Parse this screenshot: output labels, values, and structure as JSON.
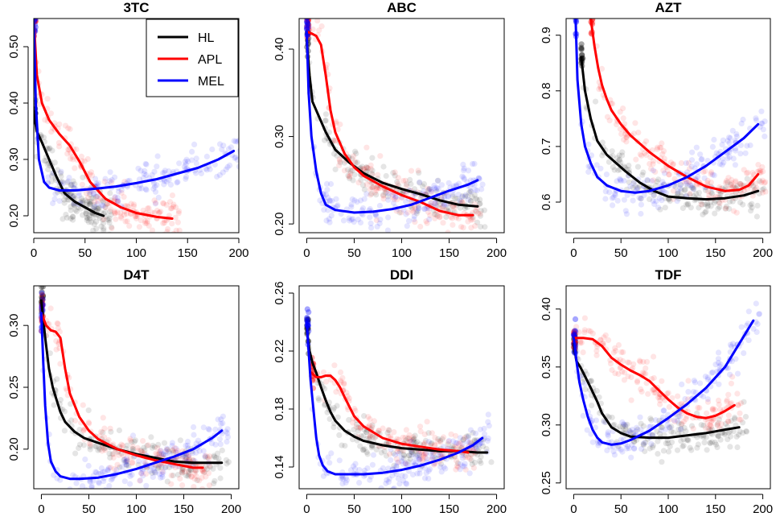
{
  "legend": {
    "placement": "top-right of first panel",
    "entries": [
      {
        "label": "HL",
        "color": "#000000"
      },
      {
        "label": "APL",
        "color": "#ff0000"
      },
      {
        "label": "MEL",
        "color": "#0000ff"
      }
    ]
  },
  "chart_data": [
    {
      "type": "line",
      "title": "3TC",
      "xlabel": "",
      "ylabel": "",
      "xlim": [
        0,
        200
      ],
      "ylim": [
        0.17,
        0.55
      ],
      "xticks": [
        0,
        50,
        100,
        150,
        200
      ],
      "yticks": [
        0.2,
        0.3,
        0.4,
        0.5
      ],
      "ytick_labels": [
        "0.20",
        "0.30",
        "0.40",
        "0.50"
      ],
      "grid": false,
      "series": [
        {
          "name": "HL",
          "color": "#000000",
          "x": [
            0,
            3,
            8,
            15,
            22,
            30,
            40,
            50,
            60,
            68
          ],
          "y": [
            0.38,
            0.35,
            0.33,
            0.3,
            0.27,
            0.24,
            0.225,
            0.215,
            0.205,
            0.2
          ]
        },
        {
          "name": "APL",
          "color": "#ff0000",
          "x": [
            0,
            3,
            8,
            15,
            25,
            35,
            45,
            55,
            70,
            85,
            100,
            120,
            135
          ],
          "y": [
            0.55,
            0.45,
            0.4,
            0.37,
            0.345,
            0.325,
            0.295,
            0.26,
            0.23,
            0.215,
            0.205,
            0.198,
            0.195
          ]
        },
        {
          "name": "MEL",
          "color": "#0000ff",
          "x": [
            0,
            2,
            5,
            10,
            15,
            25,
            40,
            60,
            80,
            100,
            120,
            140,
            160,
            180,
            195
          ],
          "y": [
            0.55,
            0.4,
            0.3,
            0.26,
            0.25,
            0.245,
            0.245,
            0.248,
            0.252,
            0.258,
            0.265,
            0.275,
            0.285,
            0.3,
            0.315
          ]
        }
      ]
    },
    {
      "type": "line",
      "title": "ABC",
      "xlabel": "",
      "ylabel": "",
      "xlim": [
        -8,
        208
      ],
      "ylim": [
        0.19,
        0.435
      ],
      "xticks": [
        0,
        50,
        100,
        150,
        200
      ],
      "yticks": [
        0.2,
        0.3,
        0.4
      ],
      "ytick_labels": [
        "0.20",
        "0.30",
        "0.40"
      ],
      "grid": false,
      "series": [
        {
          "name": "HL",
          "color": "#000000",
          "x": [
            0,
            3,
            6,
            12,
            20,
            30,
            45,
            60,
            80,
            100,
            120,
            140,
            160,
            180
          ],
          "y": [
            0.41,
            0.37,
            0.34,
            0.325,
            0.305,
            0.285,
            0.27,
            0.258,
            0.247,
            0.24,
            0.234,
            0.227,
            0.222,
            0.22
          ]
        },
        {
          "name": "APL",
          "color": "#ff0000",
          "x": [
            0,
            5,
            10,
            15,
            20,
            25,
            30,
            40,
            50,
            60,
            80,
            100,
            120,
            140,
            160,
            175
          ],
          "y": [
            0.42,
            0.418,
            0.415,
            0.405,
            0.37,
            0.33,
            0.305,
            0.28,
            0.265,
            0.255,
            0.243,
            0.233,
            0.225,
            0.215,
            0.21,
            0.21
          ]
        },
        {
          "name": "MEL",
          "color": "#0000ff",
          "x": [
            0,
            2,
            5,
            10,
            15,
            20,
            30,
            50,
            70,
            90,
            110,
            130,
            150,
            170,
            180
          ],
          "y": [
            0.42,
            0.35,
            0.3,
            0.26,
            0.235,
            0.222,
            0.216,
            0.213,
            0.214,
            0.217,
            0.222,
            0.23,
            0.238,
            0.245,
            0.25
          ]
        }
      ]
    },
    {
      "type": "line",
      "title": "AZT",
      "xlabel": "",
      "ylabel": "",
      "xlim": [
        -8,
        208
      ],
      "ylim": [
        0.545,
        0.93
      ],
      "xticks": [
        0,
        50,
        100,
        150,
        200
      ],
      "yticks": [
        0.6,
        0.7,
        0.8,
        0.9
      ],
      "ytick_labels": [
        "0.6",
        "0.7",
        "0.8",
        "0.9"
      ],
      "grid": false,
      "series": [
        {
          "name": "HL",
          "color": "#000000",
          "x": [
            8,
            12,
            18,
            25,
            35,
            45,
            55,
            70,
            85,
            100,
            120,
            140,
            160,
            180,
            195
          ],
          "y": [
            0.86,
            0.8,
            0.75,
            0.71,
            0.685,
            0.67,
            0.655,
            0.635,
            0.62,
            0.61,
            0.607,
            0.605,
            0.607,
            0.612,
            0.62
          ]
        },
        {
          "name": "APL",
          "color": "#ff0000",
          "x": [
            18,
            22,
            26,
            30,
            35,
            40,
            50,
            60,
            80,
            100,
            120,
            140,
            160,
            175,
            185,
            195
          ],
          "y": [
            0.93,
            0.88,
            0.84,
            0.81,
            0.785,
            0.765,
            0.74,
            0.72,
            0.69,
            0.665,
            0.645,
            0.628,
            0.62,
            0.622,
            0.63,
            0.65
          ]
        },
        {
          "name": "MEL",
          "color": "#0000ff",
          "x": [
            2,
            4,
            8,
            12,
            18,
            25,
            35,
            50,
            65,
            80,
            100,
            120,
            140,
            160,
            180,
            195
          ],
          "y": [
            0.93,
            0.82,
            0.74,
            0.7,
            0.67,
            0.645,
            0.63,
            0.62,
            0.617,
            0.62,
            0.63,
            0.645,
            0.665,
            0.69,
            0.715,
            0.74
          ]
        }
      ]
    },
    {
      "type": "line",
      "title": "D4T",
      "xlabel": "",
      "ylabel": "",
      "xlim": [
        -8,
        208
      ],
      "ylim": [
        0.168,
        0.332
      ],
      "xticks": [
        0,
        50,
        100,
        150,
        200
      ],
      "yticks": [
        0.2,
        0.25,
        0.3
      ],
      "ytick_labels": [
        "0.20",
        "0.25",
        "0.30"
      ],
      "grid": false,
      "series": [
        {
          "name": "HL",
          "color": "#000000",
          "x": [
            0,
            4,
            8,
            12,
            16,
            20,
            25,
            35,
            45,
            60,
            80,
            100,
            120,
            140,
            160,
            180,
            190
          ],
          "y": [
            0.32,
            0.29,
            0.265,
            0.25,
            0.24,
            0.23,
            0.222,
            0.214,
            0.209,
            0.205,
            0.2,
            0.196,
            0.193,
            0.19,
            0.189,
            0.189,
            0.189
          ]
        },
        {
          "name": "APL",
          "color": "#ff0000",
          "x": [
            0,
            5,
            10,
            15,
            20,
            25,
            30,
            40,
            50,
            60,
            80,
            100,
            120,
            140,
            160,
            170
          ],
          "y": [
            0.31,
            0.3,
            0.296,
            0.295,
            0.29,
            0.265,
            0.245,
            0.226,
            0.215,
            0.208,
            0.2,
            0.195,
            0.191,
            0.188,
            0.185,
            0.185
          ]
        },
        {
          "name": "MEL",
          "color": "#0000ff",
          "x": [
            0,
            2,
            4,
            7,
            10,
            15,
            20,
            30,
            40,
            60,
            80,
            100,
            120,
            140,
            160,
            180,
            190
          ],
          "y": [
            0.31,
            0.27,
            0.235,
            0.205,
            0.19,
            0.182,
            0.178,
            0.176,
            0.176,
            0.177,
            0.18,
            0.184,
            0.189,
            0.194,
            0.2,
            0.209,
            0.215
          ]
        }
      ]
    },
    {
      "type": "line",
      "title": "DDI",
      "xlabel": "",
      "ylabel": "",
      "xlim": [
        -8,
        208
      ],
      "ylim": [
        0.125,
        0.265
      ],
      "xticks": [
        0,
        50,
        100,
        150,
        200
      ],
      "yticks": [
        0.14,
        0.18,
        0.22,
        0.26
      ],
      "ytick_labels": [
        "0.14",
        "0.18",
        "0.22",
        "0.26"
      ],
      "grid": false,
      "series": [
        {
          "name": "HL",
          "color": "#000000",
          "x": [
            0,
            3,
            6,
            10,
            15,
            20,
            25,
            30,
            40,
            50,
            60,
            80,
            100,
            120,
            140,
            160,
            180,
            190
          ],
          "y": [
            0.235,
            0.22,
            0.212,
            0.205,
            0.195,
            0.186,
            0.178,
            0.172,
            0.165,
            0.161,
            0.158,
            0.155,
            0.153,
            0.152,
            0.151,
            0.151,
            0.15,
            0.15
          ]
        },
        {
          "name": "APL",
          "color": "#ff0000",
          "x": [
            5,
            10,
            15,
            20,
            25,
            30,
            35,
            40,
            50,
            60,
            80,
            100,
            120,
            140,
            160,
            170
          ],
          "y": [
            0.205,
            0.202,
            0.202,
            0.203,
            0.203,
            0.2,
            0.195,
            0.188,
            0.175,
            0.168,
            0.16,
            0.156,
            0.154,
            0.152,
            0.151,
            0.15
          ]
        },
        {
          "name": "MEL",
          "color": "#0000ff",
          "x": [
            0,
            2,
            4,
            7,
            10,
            13,
            17,
            22,
            30,
            45,
            60,
            80,
            100,
            120,
            140,
            160,
            175,
            185
          ],
          "y": [
            0.24,
            0.22,
            0.2,
            0.18,
            0.16,
            0.148,
            0.141,
            0.137,
            0.135,
            0.135,
            0.135,
            0.136,
            0.138,
            0.141,
            0.145,
            0.15,
            0.155,
            0.16
          ]
        }
      ]
    },
    {
      "type": "line",
      "title": "TDF",
      "xlabel": "",
      "ylabel": "",
      "xlim": [
        -8,
        208
      ],
      "ylim": [
        0.245,
        0.42
      ],
      "xticks": [
        0,
        50,
        100,
        150,
        200
      ],
      "yticks": [
        0.25,
        0.3,
        0.35,
        0.4
      ],
      "ytick_labels": [
        "0.25",
        "0.30",
        "0.35",
        "0.40"
      ],
      "grid": false,
      "series": [
        {
          "name": "HL",
          "color": "#000000",
          "x": [
            0,
            3,
            7,
            12,
            18,
            25,
            30,
            35,
            40,
            50,
            60,
            80,
            100,
            120,
            140,
            160,
            175
          ],
          "y": [
            0.37,
            0.355,
            0.35,
            0.342,
            0.332,
            0.32,
            0.31,
            0.304,
            0.298,
            0.293,
            0.29,
            0.289,
            0.289,
            0.291,
            0.293,
            0.296,
            0.298
          ]
        },
        {
          "name": "APL",
          "color": "#ff0000",
          "x": [
            0,
            10,
            20,
            30,
            40,
            50,
            60,
            70,
            80,
            90,
            100,
            110,
            120,
            130,
            140,
            150,
            160,
            170
          ],
          "y": [
            0.375,
            0.375,
            0.374,
            0.368,
            0.358,
            0.352,
            0.347,
            0.343,
            0.338,
            0.33,
            0.322,
            0.315,
            0.31,
            0.307,
            0.306,
            0.308,
            0.312,
            0.317
          ]
        },
        {
          "name": "MEL",
          "color": "#0000ff",
          "x": [
            0,
            3,
            6,
            10,
            15,
            20,
            25,
            30,
            40,
            50,
            60,
            80,
            100,
            120,
            140,
            160,
            175,
            190
          ],
          "y": [
            0.375,
            0.355,
            0.337,
            0.322,
            0.307,
            0.296,
            0.289,
            0.285,
            0.283,
            0.284,
            0.287,
            0.295,
            0.306,
            0.318,
            0.332,
            0.35,
            0.37,
            0.39
          ]
        }
      ]
    }
  ]
}
